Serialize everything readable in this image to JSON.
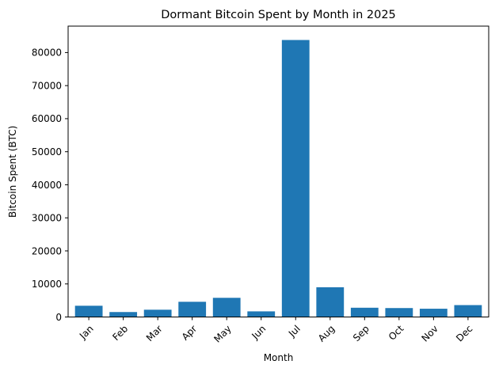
{
  "chart_data": {
    "type": "bar",
    "title": "Dormant Bitcoin Spent by Month in 2025",
    "xlabel": "Month",
    "ylabel": "Bitcoin Spent (BTC)",
    "categories": [
      "Jan",
      "Feb",
      "Mar",
      "Apr",
      "May",
      "Jun",
      "Jul",
      "Aug",
      "Sep",
      "Oct",
      "Nov",
      "Dec"
    ],
    "values": [
      3400,
      1500,
      2200,
      4600,
      5800,
      1700,
      83800,
      9000,
      2800,
      2700,
      2500,
      3600
    ],
    "ylim": [
      0,
      88000
    ],
    "yticks": [
      0,
      10000,
      20000,
      30000,
      40000,
      50000,
      60000,
      70000,
      80000
    ],
    "bar_color": "#1f77b4",
    "grid": false,
    "legend": "none"
  }
}
